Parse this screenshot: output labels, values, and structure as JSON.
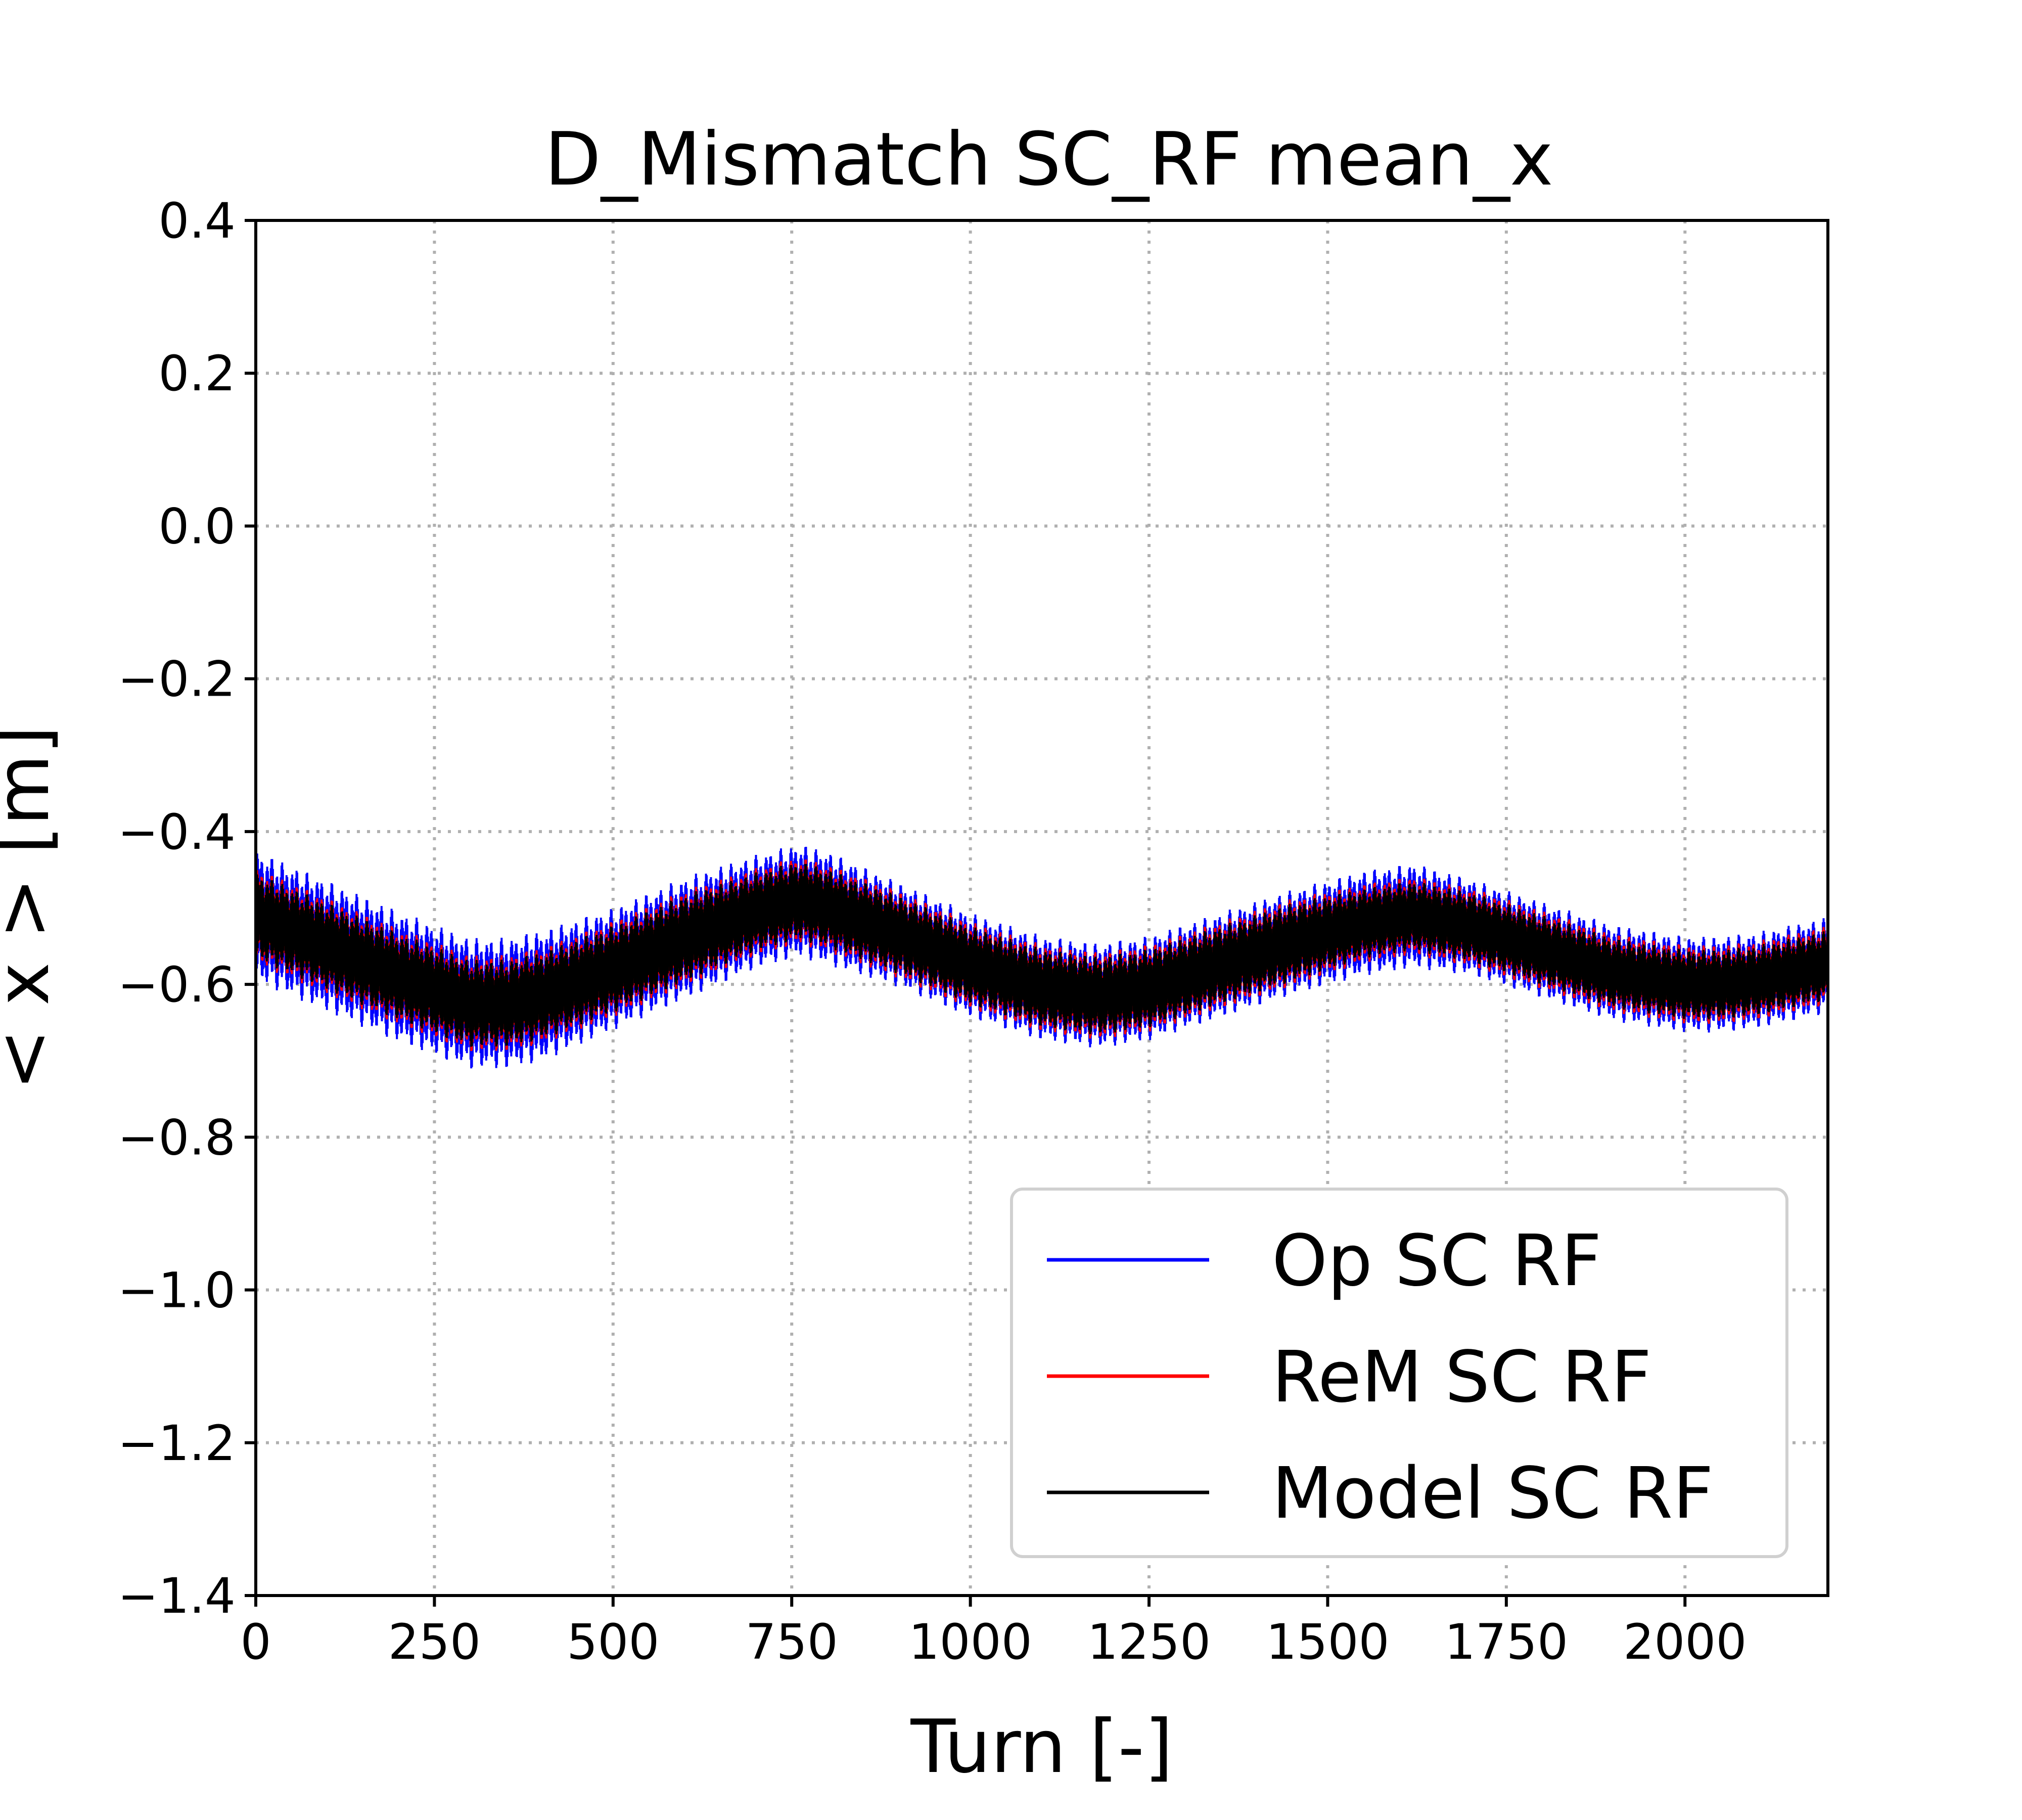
{
  "chart_data": {
    "type": "line",
    "title": "D_Mismatch SC_RF mean_x",
    "xlabel": "Turn [-]",
    "ylabel": "< x > [m]",
    "xlim": [
      0,
      2200
    ],
    "ylim": [
      -1.4,
      0.4
    ],
    "x_ticks": [
      0,
      250,
      500,
      750,
      1000,
      1250,
      1500,
      1750,
      2000
    ],
    "x_tick_labels": [
      "0",
      "250",
      "500",
      "750",
      "1000",
      "1250",
      "1500",
      "1750",
      "2000"
    ],
    "y_ticks": [
      0.4,
      0.2,
      0.0,
      -0.2,
      -0.4,
      -0.6,
      -0.8,
      -1.0,
      -1.2,
      -1.4
    ],
    "y_tick_labels": [
      "0.4",
      "0.2",
      "0.0",
      "−0.2",
      "−0.4",
      "−0.6",
      "−0.8",
      "−1.0",
      "−1.2",
      "−1.4"
    ],
    "grid": true,
    "legend_position": "lower-right",
    "series": [
      {
        "name": "Op SC RF",
        "color": "#0000ff",
        "x": [
          0,
          100,
          200,
          300,
          350,
          400,
          500,
          600,
          700,
          760,
          800,
          900,
          1000,
          1100,
          1180,
          1250,
          1350,
          1450,
          1550,
          1620,
          1700,
          1800,
          1900,
          2000,
          2050,
          2100,
          2200
        ],
        "band_center": [
          -0.51,
          -0.55,
          -0.59,
          -0.625,
          -0.625,
          -0.615,
          -0.58,
          -0.54,
          -0.505,
          -0.49,
          -0.5,
          -0.535,
          -0.575,
          -0.605,
          -0.615,
          -0.605,
          -0.575,
          -0.545,
          -0.52,
          -0.51,
          -0.525,
          -0.555,
          -0.585,
          -0.6,
          -0.6,
          -0.595,
          -0.575
        ],
        "band_halfwidth": [
          0.075,
          0.075,
          0.075,
          0.075,
          0.075,
          0.075,
          0.07,
          0.07,
          0.065,
          0.065,
          0.065,
          0.06,
          0.06,
          0.06,
          0.06,
          0.06,
          0.06,
          0.06,
          0.06,
          0.06,
          0.055,
          0.055,
          0.055,
          0.055,
          0.055,
          0.055,
          0.055
        ]
      },
      {
        "name": "ReM SC RF",
        "color": "#ff0000",
        "x": [
          0,
          100,
          200,
          300,
          350,
          400,
          500,
          600,
          700,
          760,
          800,
          900,
          1000,
          1100,
          1180,
          1250,
          1350,
          1450,
          1550,
          1620,
          1700,
          1800,
          1900,
          2000,
          2050,
          2100,
          2200
        ],
        "band_center": [
          -0.51,
          -0.55,
          -0.59,
          -0.625,
          -0.625,
          -0.615,
          -0.58,
          -0.54,
          -0.505,
          -0.49,
          -0.5,
          -0.535,
          -0.575,
          -0.605,
          -0.615,
          -0.605,
          -0.575,
          -0.545,
          -0.52,
          -0.51,
          -0.525,
          -0.555,
          -0.585,
          -0.6,
          -0.6,
          -0.595,
          -0.575
        ],
        "band_halfwidth": [
          0.055,
          0.055,
          0.055,
          0.055,
          0.055,
          0.055,
          0.055,
          0.055,
          0.05,
          0.05,
          0.05,
          0.05,
          0.05,
          0.05,
          0.05,
          0.05,
          0.05,
          0.05,
          0.045,
          0.045,
          0.045,
          0.045,
          0.045,
          0.045,
          0.045,
          0.045,
          0.045
        ]
      },
      {
        "name": "Model SC RF",
        "color": "#000000",
        "x": [
          0,
          100,
          200,
          300,
          350,
          400,
          500,
          600,
          700,
          760,
          800,
          900,
          1000,
          1100,
          1180,
          1250,
          1350,
          1450,
          1550,
          1620,
          1700,
          1800,
          1900,
          2000,
          2050,
          2100,
          2200
        ],
        "band_center": [
          -0.51,
          -0.55,
          -0.59,
          -0.625,
          -0.625,
          -0.615,
          -0.58,
          -0.54,
          -0.505,
          -0.49,
          -0.5,
          -0.535,
          -0.575,
          -0.605,
          -0.615,
          -0.605,
          -0.575,
          -0.545,
          -0.52,
          -0.51,
          -0.525,
          -0.555,
          -0.585,
          -0.6,
          -0.6,
          -0.595,
          -0.575
        ],
        "band_halfwidth": [
          0.05,
          0.05,
          0.05,
          0.05,
          0.05,
          0.05,
          0.05,
          0.05,
          0.045,
          0.045,
          0.045,
          0.045,
          0.045,
          0.045,
          0.045,
          0.045,
          0.045,
          0.045,
          0.04,
          0.04,
          0.04,
          0.04,
          0.04,
          0.04,
          0.04,
          0.04,
          0.04
        ]
      }
    ]
  }
}
